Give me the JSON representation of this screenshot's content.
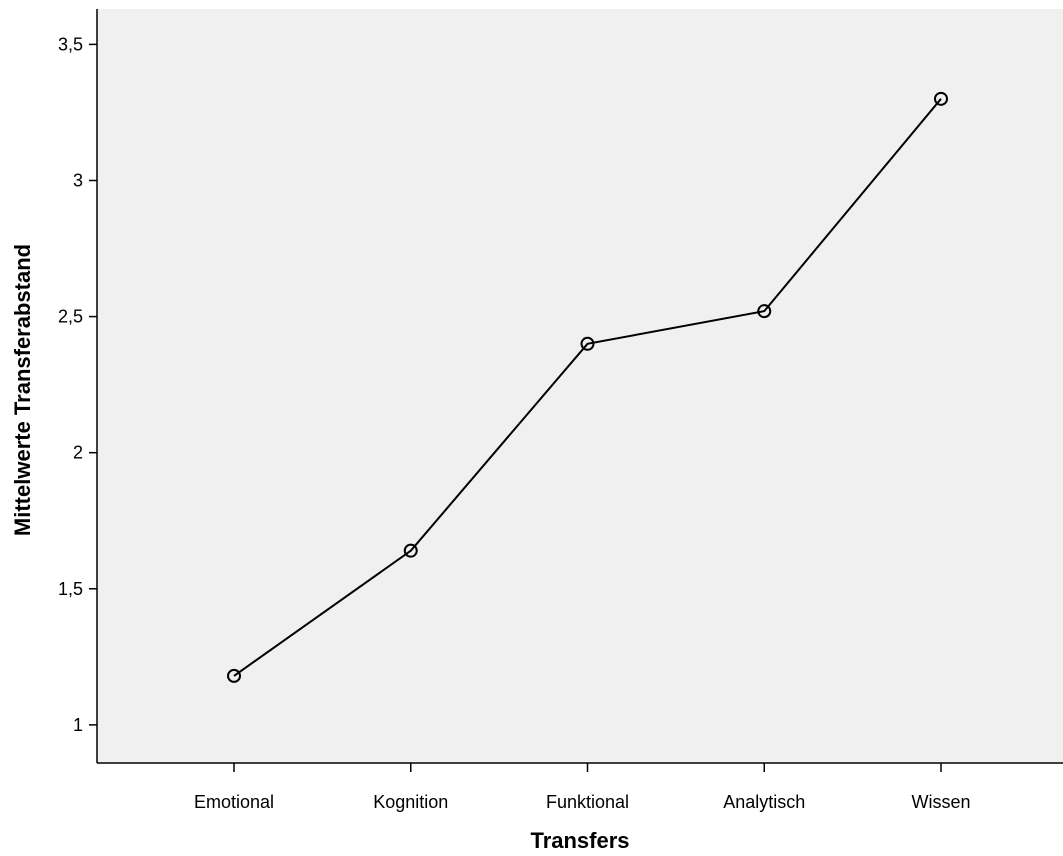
{
  "chart_data": {
    "type": "line",
    "xlabel": "Transfers",
    "ylabel": "Mittelwerte Transferabstand",
    "categories": [
      "Emotional",
      "Kognition",
      "Funktional",
      "Analytisch",
      "Wissen"
    ],
    "series": [
      {
        "values": [
          1.18,
          1.64,
          2.4,
          2.52,
          3.3
        ]
      }
    ],
    "ylim": [
      0.86,
      3.63
    ],
    "yticks": [
      {
        "value": 1,
        "label": "1"
      },
      {
        "value": 1.5,
        "label": "1,5"
      },
      {
        "value": 2,
        "label": "2"
      },
      {
        "value": 2.5,
        "label": "2,5"
      },
      {
        "value": 3,
        "label": "3"
      },
      {
        "value": 3.5,
        "label": "3,5"
      }
    ],
    "grid": false,
    "legend": "none",
    "plot_background": "#f0f0f0",
    "line_color": "#000000",
    "marker": "circle-open"
  }
}
